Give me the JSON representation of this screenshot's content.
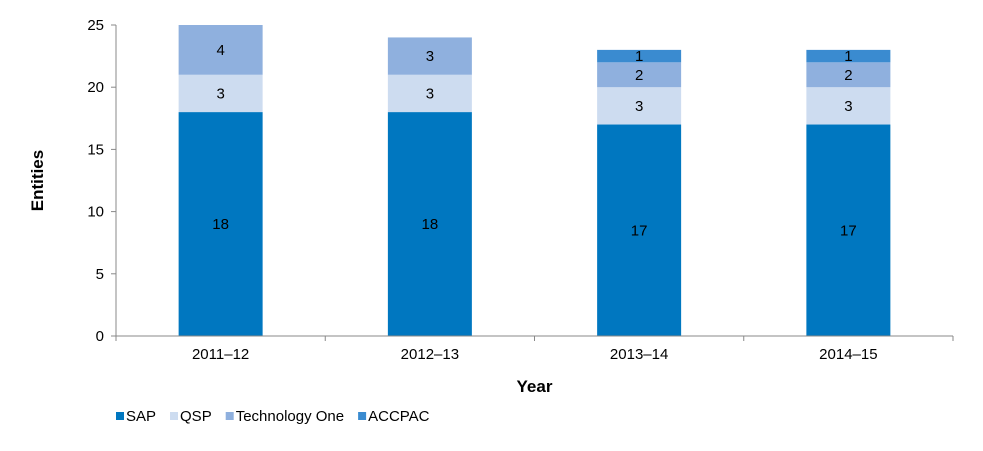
{
  "chart_data": {
    "type": "bar",
    "stacked": true,
    "categories": [
      "2011–12",
      "2012–13",
      "2013–14",
      "2014–15"
    ],
    "series": [
      {
        "name": "SAP",
        "values": [
          18,
          18,
          17,
          17
        ],
        "color": "#0077c0"
      },
      {
        "name": "QSP",
        "values": [
          3,
          3,
          3,
          3
        ],
        "color": "#cddcf0"
      },
      {
        "name": "Technology One",
        "values": [
          4,
          3,
          2,
          2
        ],
        "color": "#8fb0de"
      },
      {
        "name": "ACCPAC",
        "values": [
          0,
          0,
          1,
          1
        ],
        "color": "#3a8bd0"
      }
    ],
    "xlabel": "Year",
    "ylabel": "Entities",
    "ylim": [
      0,
      25
    ],
    "yticks": [
      0,
      5,
      10,
      15,
      20,
      25
    ],
    "grid": false,
    "legend_position": "bottom-left"
  }
}
